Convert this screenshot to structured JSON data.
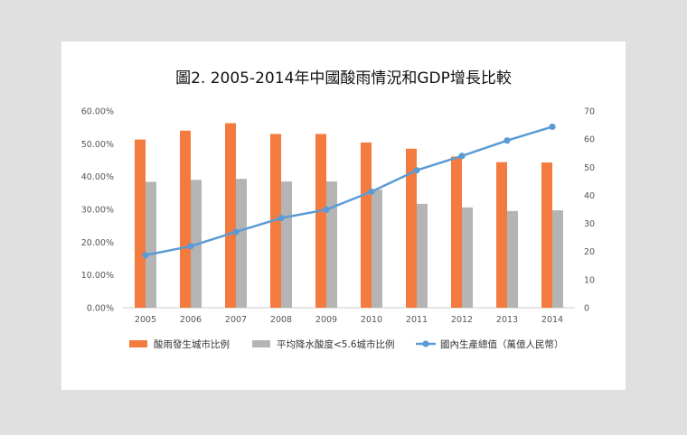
{
  "chart_data": {
    "type": "bar",
    "title": "圖2. 2005-2014年中國酸雨情況和GDP增長比較",
    "categories": [
      "2005",
      "2006",
      "2007",
      "2008",
      "2009",
      "2010",
      "2011",
      "2012",
      "2013",
      "2014"
    ],
    "y_left": {
      "range": [
        0,
        60
      ],
      "ticks": [
        "0.00%",
        "10.00%",
        "20.00%",
        "30.00%",
        "40.00%",
        "50.00%",
        "60.00%"
      ]
    },
    "y_right": {
      "range": [
        0,
        70
      ],
      "ticks": [
        "0",
        "10",
        "20",
        "30",
        "40",
        "50",
        "60",
        "70"
      ]
    },
    "series": [
      {
        "name": "酸雨發生城市比例",
        "type": "bar",
        "axis": "left",
        "color": "#f47b3f",
        "values": [
          51.3,
          54.0,
          56.3,
          53.0,
          53.0,
          50.4,
          48.5,
          46.1,
          44.4,
          44.3
        ]
      },
      {
        "name": "平均降水酸度<5.6城市比例",
        "type": "bar",
        "axis": "left",
        "color": "#b4b4b4",
        "values": [
          38.4,
          39.0,
          39.3,
          38.5,
          38.5,
          36.0,
          31.7,
          30.6,
          29.5,
          29.7
        ]
      },
      {
        "name": "國內生產總值（萬億人民幣）",
        "type": "line",
        "axis": "right",
        "color": "#5b9bd5",
        "values": [
          18.7,
          21.9,
          27.0,
          31.9,
          34.9,
          41.3,
          48.9,
          54.0,
          59.5,
          64.4
        ]
      }
    ],
    "grid": false,
    "legend": "bottom"
  }
}
